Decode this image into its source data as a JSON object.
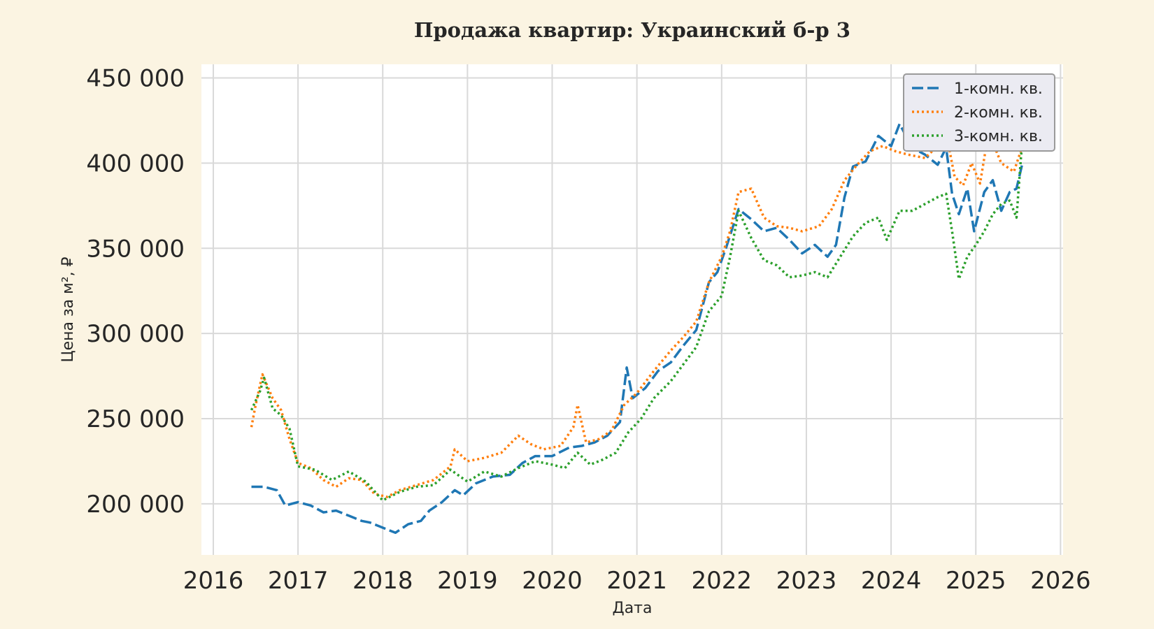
{
  "chart_data": {
    "type": "line",
    "title": "Продажа квартир: Украинский б-р 3",
    "xlabel": "Дата",
    "ylabel": "Цена за м², ₽",
    "xlim": [
      2015.86,
      2026.03
    ],
    "ylim": [
      170000,
      458000
    ],
    "x_ticks": [
      2016,
      2017,
      2018,
      2019,
      2020,
      2021,
      2022,
      2023,
      2024,
      2025,
      2026
    ],
    "x_tick_labels": [
      "2016",
      "2017",
      "2018",
      "2019",
      "2020",
      "2021",
      "2022",
      "2023",
      "2024",
      "2025",
      "2026"
    ],
    "y_ticks": [
      200000,
      250000,
      300000,
      350000,
      400000,
      450000
    ],
    "y_tick_labels": [
      "200 000",
      "250 000",
      "300 000",
      "350 000",
      "400 000",
      "450 000"
    ],
    "grid": true,
    "legend_position": "top-right",
    "series": [
      {
        "name": "1-комн. кв.",
        "color": "#1f77b4",
        "style": "dashed",
        "points": [
          [
            2016.45,
            210000
          ],
          [
            2016.6,
            210000
          ],
          [
            2016.75,
            208000
          ],
          [
            2016.85,
            199000
          ],
          [
            2017.0,
            201000
          ],
          [
            2017.15,
            199000
          ],
          [
            2017.3,
            195000
          ],
          [
            2017.45,
            196000
          ],
          [
            2017.6,
            193000
          ],
          [
            2017.75,
            190000
          ],
          [
            2017.85,
            189000
          ],
          [
            2018.0,
            186000
          ],
          [
            2018.15,
            183000
          ],
          [
            2018.3,
            188000
          ],
          [
            2018.45,
            190000
          ],
          [
            2018.55,
            196000
          ],
          [
            2018.7,
            201000
          ],
          [
            2018.85,
            208000
          ],
          [
            2018.95,
            205000
          ],
          [
            2019.1,
            212000
          ],
          [
            2019.3,
            216000
          ],
          [
            2019.5,
            217000
          ],
          [
            2019.65,
            224000
          ],
          [
            2019.8,
            228000
          ],
          [
            2020.0,
            228000
          ],
          [
            2020.2,
            233000
          ],
          [
            2020.35,
            234000
          ],
          [
            2020.5,
            236000
          ],
          [
            2020.65,
            240000
          ],
          [
            2020.8,
            248000
          ],
          [
            2020.88,
            280000
          ],
          [
            2020.95,
            262000
          ],
          [
            2021.1,
            268000
          ],
          [
            2021.25,
            278000
          ],
          [
            2021.4,
            283000
          ],
          [
            2021.55,
            293000
          ],
          [
            2021.7,
            302000
          ],
          [
            2021.85,
            330000
          ],
          [
            2021.95,
            336000
          ],
          [
            2022.05,
            350000
          ],
          [
            2022.2,
            373000
          ],
          [
            2022.35,
            367000
          ],
          [
            2022.5,
            360000
          ],
          [
            2022.65,
            362000
          ],
          [
            2022.8,
            355000
          ],
          [
            2022.95,
            347000
          ],
          [
            2023.1,
            352000
          ],
          [
            2023.25,
            345000
          ],
          [
            2023.35,
            352000
          ],
          [
            2023.45,
            380000
          ],
          [
            2023.55,
            398000
          ],
          [
            2023.7,
            401000
          ],
          [
            2023.85,
            416000
          ],
          [
            2024.0,
            410000
          ],
          [
            2024.1,
            423000
          ],
          [
            2024.25,
            409000
          ],
          [
            2024.4,
            405000
          ],
          [
            2024.55,
            399000
          ],
          [
            2024.65,
            409000
          ],
          [
            2024.72,
            382000
          ],
          [
            2024.8,
            370000
          ],
          [
            2024.9,
            385000
          ],
          [
            2024.98,
            360000
          ],
          [
            2025.1,
            383000
          ],
          [
            2025.2,
            390000
          ],
          [
            2025.3,
            372000
          ],
          [
            2025.4,
            383000
          ],
          [
            2025.48,
            385000
          ],
          [
            2025.55,
            400000
          ]
        ],
        "end_label": ""
      },
      {
        "name": "2-комн. кв.",
        "color": "#ff7f0e",
        "style": "dotted",
        "points": [
          [
            2016.45,
            245000
          ],
          [
            2016.5,
            258000
          ],
          [
            2016.58,
            276000
          ],
          [
            2016.7,
            262000
          ],
          [
            2016.8,
            255000
          ],
          [
            2016.9,
            238000
          ],
          [
            2017.0,
            224000
          ],
          [
            2017.15,
            221000
          ],
          [
            2017.3,
            214000
          ],
          [
            2017.45,
            210000
          ],
          [
            2017.6,
            215000
          ],
          [
            2017.75,
            214000
          ],
          [
            2017.9,
            206000
          ],
          [
            2018.05,
            204000
          ],
          [
            2018.2,
            208000
          ],
          [
            2018.4,
            211000
          ],
          [
            2018.6,
            214000
          ],
          [
            2018.8,
            222000
          ],
          [
            2018.85,
            232000
          ],
          [
            2019.0,
            225000
          ],
          [
            2019.2,
            227000
          ],
          [
            2019.4,
            230000
          ],
          [
            2019.6,
            240000
          ],
          [
            2019.75,
            235000
          ],
          [
            2019.9,
            232000
          ],
          [
            2020.1,
            234000
          ],
          [
            2020.25,
            245000
          ],
          [
            2020.3,
            258000
          ],
          [
            2020.4,
            236000
          ],
          [
            2020.55,
            238000
          ],
          [
            2020.7,
            243000
          ],
          [
            2020.85,
            258000
          ],
          [
            2021.0,
            265000
          ],
          [
            2021.2,
            278000
          ],
          [
            2021.4,
            290000
          ],
          [
            2021.55,
            298000
          ],
          [
            2021.7,
            307000
          ],
          [
            2021.85,
            330000
          ],
          [
            2022.0,
            345000
          ],
          [
            2022.1,
            360000
          ],
          [
            2022.2,
            383000
          ],
          [
            2022.35,
            385000
          ],
          [
            2022.5,
            368000
          ],
          [
            2022.65,
            363000
          ],
          [
            2022.8,
            362000
          ],
          [
            2022.95,
            360000
          ],
          [
            2023.15,
            363000
          ],
          [
            2023.3,
            373000
          ],
          [
            2023.45,
            390000
          ],
          [
            2023.6,
            399000
          ],
          [
            2023.75,
            407000
          ],
          [
            2023.9,
            410000
          ],
          [
            2024.05,
            407000
          ],
          [
            2024.2,
            405000
          ],
          [
            2024.4,
            403000
          ],
          [
            2024.55,
            410000
          ],
          [
            2024.65,
            418000
          ],
          [
            2024.75,
            392000
          ],
          [
            2024.85,
            387000
          ],
          [
            2024.95,
            400000
          ],
          [
            2025.05,
            388000
          ],
          [
            2025.15,
            418000
          ],
          [
            2025.3,
            400000
          ],
          [
            2025.45,
            395000
          ],
          [
            2025.55,
            410000
          ]
        ],
        "end_label": ""
      },
      {
        "name": "3-комн. кв.",
        "color": "#2ca02c",
        "style": "dotted",
        "points": [
          [
            2016.45,
            255000
          ],
          [
            2016.55,
            266000
          ],
          [
            2016.6,
            274000
          ],
          [
            2016.7,
            256000
          ],
          [
            2016.8,
            252000
          ],
          [
            2016.9,
            244000
          ],
          [
            2017.0,
            222000
          ],
          [
            2017.2,
            220000
          ],
          [
            2017.4,
            214000
          ],
          [
            2017.6,
            219000
          ],
          [
            2017.8,
            213000
          ],
          [
            2018.0,
            202000
          ],
          [
            2018.2,
            207000
          ],
          [
            2018.4,
            210000
          ],
          [
            2018.6,
            211000
          ],
          [
            2018.8,
            220000
          ],
          [
            2019.0,
            213000
          ],
          [
            2019.2,
            219000
          ],
          [
            2019.4,
            216000
          ],
          [
            2019.6,
            221000
          ],
          [
            2019.8,
            225000
          ],
          [
            2020.0,
            223000
          ],
          [
            2020.15,
            221000
          ],
          [
            2020.3,
            230000
          ],
          [
            2020.45,
            223000
          ],
          [
            2020.6,
            226000
          ],
          [
            2020.75,
            230000
          ],
          [
            2020.9,
            242000
          ],
          [
            2021.05,
            250000
          ],
          [
            2021.2,
            262000
          ],
          [
            2021.4,
            272000
          ],
          [
            2021.55,
            282000
          ],
          [
            2021.7,
            292000
          ],
          [
            2021.85,
            313000
          ],
          [
            2022.0,
            322000
          ],
          [
            2022.1,
            345000
          ],
          [
            2022.2,
            372000
          ],
          [
            2022.35,
            356000
          ],
          [
            2022.5,
            343000
          ],
          [
            2022.65,
            340000
          ],
          [
            2022.8,
            333000
          ],
          [
            2022.95,
            334000
          ],
          [
            2023.1,
            336000
          ],
          [
            2023.25,
            333000
          ],
          [
            2023.4,
            345000
          ],
          [
            2023.55,
            357000
          ],
          [
            2023.7,
            365000
          ],
          [
            2023.85,
            368000
          ],
          [
            2023.95,
            355000
          ],
          [
            2024.1,
            372000
          ],
          [
            2024.25,
            372000
          ],
          [
            2024.4,
            376000
          ],
          [
            2024.55,
            380000
          ],
          [
            2024.65,
            382000
          ],
          [
            2024.72,
            360000
          ],
          [
            2024.8,
            332000
          ],
          [
            2024.9,
            345000
          ],
          [
            2025.0,
            352000
          ],
          [
            2025.1,
            360000
          ],
          [
            2025.2,
            370000
          ],
          [
            2025.3,
            376000
          ],
          [
            2025.4,
            378000
          ],
          [
            2025.48,
            368000
          ],
          [
            2025.55,
            415000
          ]
        ],
        "end_label": ""
      }
    ]
  }
}
